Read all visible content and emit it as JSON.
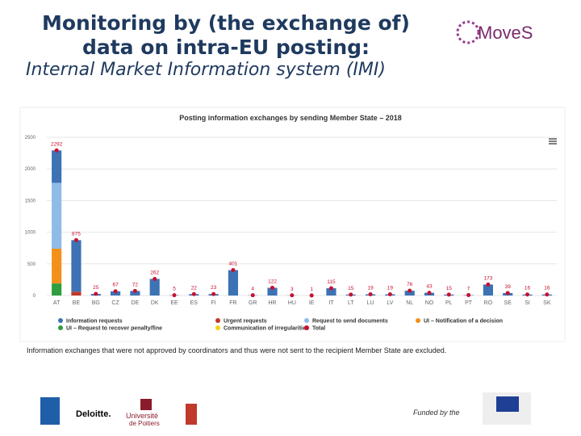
{
  "header": {
    "title_lines": [
      "Monitoring by (the exchange of)",
      "data on intra-EU posting:"
    ],
    "subtitle": "Internal Market Information system (IMI)"
  },
  "chart_data": {
    "type": "bar",
    "stacked": true,
    "title": "Posting information exchanges by sending Member State – 2018",
    "categories": [
      "AT",
      "BE",
      "BG",
      "CZ",
      "DE",
      "DK",
      "EE",
      "ES",
      "FI",
      "FR",
      "GR",
      "HR",
      "HU",
      "IE",
      "IT",
      "LT",
      "LU",
      "LV",
      "NL",
      "NO",
      "PL",
      "PT",
      "RO",
      "SE",
      "SI",
      "SK"
    ],
    "series": [
      {
        "name": "Information requests",
        "color": "#3d72b4",
        "values": [
          512,
          815,
          25,
          67,
          72,
          262,
          5,
          22,
          23,
          401,
          4,
          122,
          3,
          1,
          115,
          15,
          19,
          19,
          76,
          43,
          15,
          7,
          173,
          39,
          16,
          16
        ]
      },
      {
        "name": "Urgent requests",
        "color": "#c0392b",
        "values": [
          0,
          60,
          0,
          0,
          0,
          0,
          0,
          0,
          0,
          0,
          0,
          0,
          0,
          0,
          0,
          0,
          0,
          0,
          0,
          0,
          0,
          0,
          0,
          0,
          0,
          0
        ]
      },
      {
        "name": "Request to send documents",
        "color": "#8fbbe8",
        "values": [
          1040,
          0,
          0,
          0,
          0,
          0,
          0,
          0,
          0,
          0,
          0,
          0,
          0,
          0,
          0,
          0,
          0,
          0,
          0,
          0,
          0,
          0,
          0,
          0,
          0,
          0
        ]
      },
      {
        "name": "UI – Notification of a decision",
        "color": "#f39019",
        "values": [
          550,
          0,
          0,
          0,
          0,
          0,
          0,
          0,
          0,
          0,
          0,
          0,
          0,
          0,
          0,
          0,
          0,
          0,
          0,
          0,
          0,
          0,
          0,
          0,
          0,
          0
        ]
      },
      {
        "name": "UI – Request to recover penalty/fine",
        "color": "#2e9e3e",
        "values": [
          190,
          0,
          0,
          0,
          0,
          0,
          0,
          0,
          0,
          0,
          0,
          0,
          0,
          0,
          0,
          0,
          0,
          0,
          0,
          0,
          0,
          0,
          0,
          0,
          0,
          0
        ]
      },
      {
        "name": "Communication of irregularities",
        "color": "#f2d21b",
        "values": [
          0,
          0,
          0,
          0,
          0,
          0,
          0,
          0,
          0,
          0,
          0,
          0,
          0,
          0,
          0,
          0,
          0,
          0,
          0,
          0,
          0,
          0,
          0,
          0,
          0,
          0
        ]
      },
      {
        "name": "Total",
        "color": "#c8102e",
        "mark": "dot",
        "values": [
          2292,
          875,
          25,
          67,
          72,
          262,
          5,
          22,
          23,
          401,
          4,
          122,
          3,
          1,
          115,
          15,
          19,
          19,
          76,
          43,
          15,
          7,
          173,
          39,
          16,
          16
        ]
      }
    ],
    "ylim": [
      0,
      2500
    ],
    "yticks": [
      0,
      500,
      1000,
      1500,
      2000,
      2500
    ],
    "grid": true,
    "footnote": "Information exchanges that were not approved by coordinators and thus were not sent to the recipient Member State are excluded."
  },
  "logos": {
    "moves": "MoveS",
    "deloitte": "Deloitte.",
    "poitiers_1": "Université",
    "poitiers_2": "de Poitiers",
    "funded": "Funded by the"
  }
}
